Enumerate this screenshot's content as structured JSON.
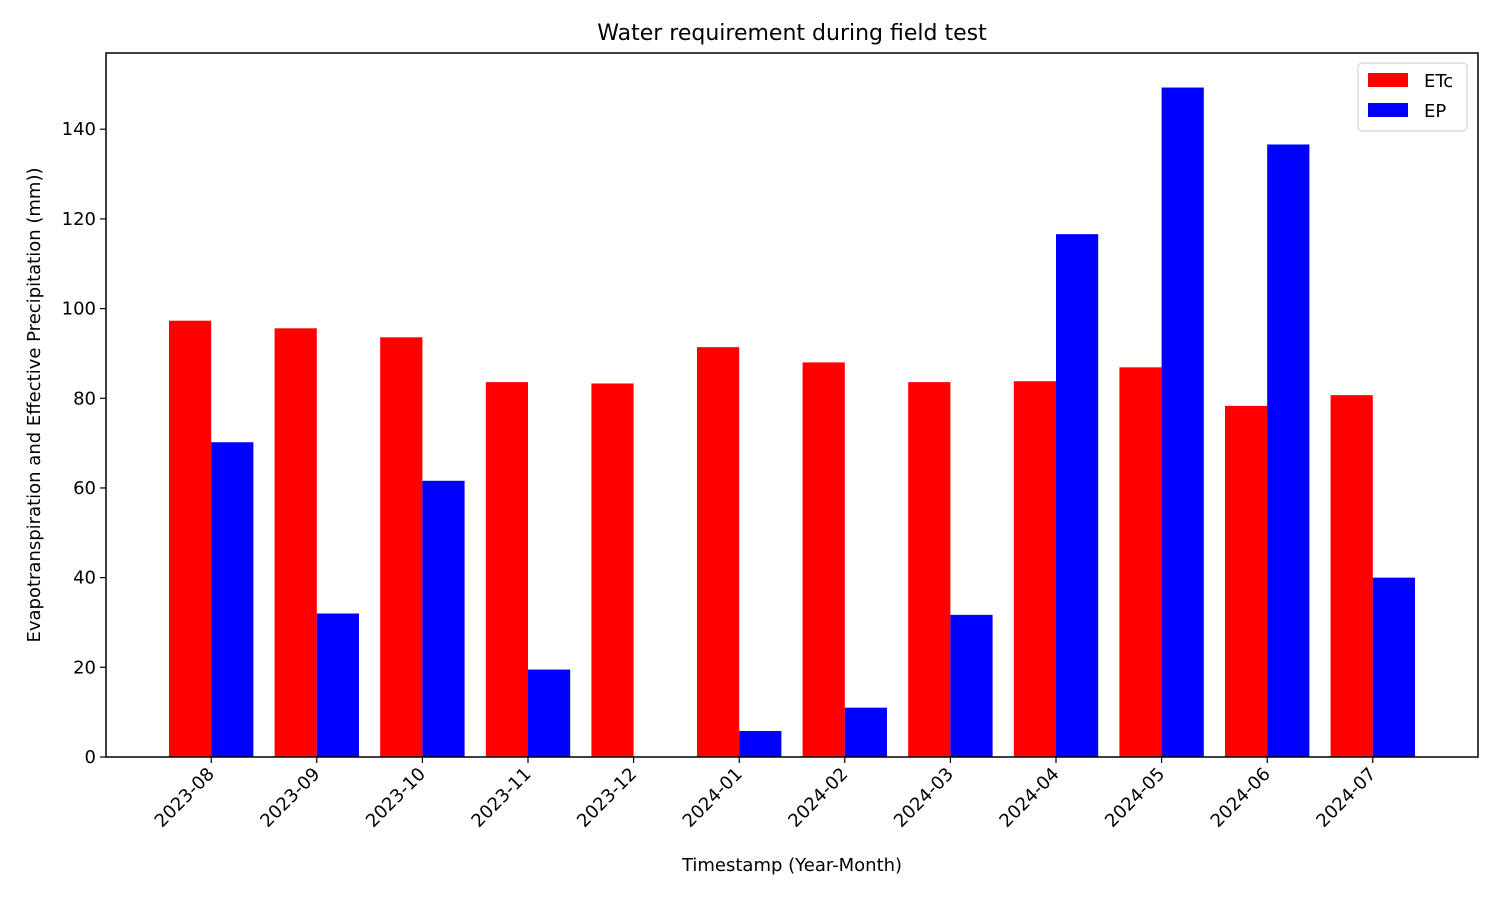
{
  "chart_data": {
    "type": "bar",
    "title": "Water requirement during field test",
    "xlabel": "Timestamp (Year-Month)",
    "ylabel": "Evapotranspiration and Effective Precipitation (mm))",
    "categories": [
      "2023-08",
      "2023-09",
      "2023-10",
      "2023-11",
      "2023-12",
      "2024-01",
      "2024-02",
      "2024-03",
      "2024-04",
      "2024-05",
      "2024-06",
      "2024-07"
    ],
    "series": [
      {
        "name": "ETc",
        "color": "#ff0000",
        "values": [
          97.3,
          95.6,
          93.6,
          83.6,
          83.3,
          91.4,
          88.0,
          83.6,
          83.8,
          86.9,
          78.3,
          80.7
        ]
      },
      {
        "name": "EP",
        "color": "#0000ff",
        "values": [
          70.2,
          32.0,
          61.6,
          19.5,
          0,
          5.8,
          11.0,
          31.7,
          116.6,
          149.3,
          136.6,
          40.0
        ]
      }
    ],
    "ylim": [
      0,
      157
    ],
    "yticks": [
      0,
      20,
      40,
      60,
      80,
      100,
      120,
      140
    ],
    "grid": false,
    "legend_position": "top-right"
  }
}
